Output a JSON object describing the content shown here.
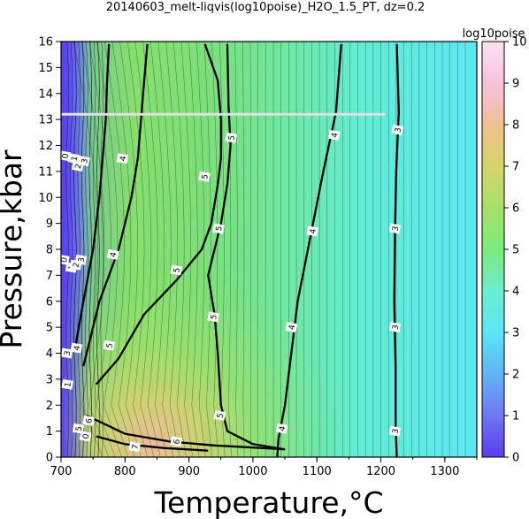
{
  "chart_data": {
    "type": "heatmap",
    "title": "20140603_melt-liqvis(log10poise)_H2O_1.5_PT, dz=0.2",
    "xlabel": "Temperature,°C",
    "ylabel": "Pressure,kbar",
    "xlim": [
      700,
      1350
    ],
    "ylim": [
      0,
      16
    ],
    "x_ticks": [
      "700",
      "800",
      "900",
      "1000",
      "1100",
      "1200",
      "1300"
    ],
    "y_ticks": [
      "0",
      "1",
      "2",
      "3",
      "4",
      "5",
      "6",
      "7",
      "8",
      "9",
      "10",
      "11",
      "12",
      "13",
      "14",
      "15",
      "16"
    ],
    "colorbar": {
      "label": "log10poise",
      "range": [
        0,
        10
      ],
      "ticks": [
        "0",
        "1",
        "2",
        "3",
        "4",
        "5",
        "6",
        "7",
        "8",
        "9",
        "10"
      ],
      "colors": [
        "#5a3cf0",
        "#6e78f2",
        "#5fb4f5",
        "#5ae6f5",
        "#6aeed0",
        "#7aea7a",
        "#a8e06a",
        "#d6d46a",
        "#f0c090",
        "#f7c0e0",
        "#fce2f2"
      ]
    },
    "major_contours": [
      {
        "level": 3,
        "points": [
          [
            1225,
            15.9
          ],
          [
            1228,
            13.3
          ],
          [
            1224,
            11.0
          ],
          [
            1222,
            8.5
          ],
          [
            1221,
            6.0
          ],
          [
            1223,
            3.5
          ],
          [
            1223,
            1.2
          ],
          [
            1225,
            0.0
          ]
        ]
      },
      {
        "level": 4,
        "points": [
          [
            1138,
            15.9
          ],
          [
            1130,
            13.3
          ],
          [
            1110,
            11.0
          ],
          [
            1090,
            8.5
          ],
          [
            1070,
            6.0
          ],
          [
            1060,
            4.0
          ],
          [
            1050,
            2.0
          ],
          [
            1040,
            0.7
          ],
          [
            1038,
            0.0
          ]
        ]
      },
      {
        "level": 5,
        "points": [
          [
            960,
            15.9
          ],
          [
            962,
            13.5
          ],
          [
            965,
            12.0
          ],
          [
            960,
            10.5
          ],
          [
            950,
            9.0
          ],
          [
            930,
            7.0
          ],
          [
            940,
            5.5
          ],
          [
            945,
            4.0
          ],
          [
            950,
            2.0
          ],
          [
            960,
            1.0
          ],
          [
            1000,
            0.5
          ],
          [
            1050,
            0.3
          ]
        ]
      },
      {
        "level": 5,
        "points": [
          [
            755,
            2.8
          ],
          [
            790,
            3.8
          ],
          [
            830,
            5.5
          ],
          [
            880,
            6.8
          ],
          [
            920,
            8.0
          ],
          [
            935,
            9.0
          ],
          [
            945,
            10.5
          ],
          [
            950,
            11.5
          ],
          [
            950,
            13.0
          ],
          [
            945,
            14.5
          ],
          [
            925,
            15.9
          ]
        ]
      },
      {
        "level": 4,
        "points": [
          [
            735,
            3.5
          ],
          [
            760,
            6.0
          ],
          [
            790,
            8.0
          ],
          [
            810,
            10.0
          ],
          [
            820,
            11.5
          ],
          [
            825,
            13.0
          ],
          [
            830,
            14.5
          ],
          [
            835,
            15.9
          ]
        ]
      },
      {
        "level": 3,
        "points": [
          [
            722,
            4.2
          ],
          [
            735,
            6.0
          ],
          [
            750,
            8.0
          ],
          [
            760,
            10.0
          ],
          [
            765,
            11.5
          ],
          [
            770,
            13.0
          ],
          [
            772,
            14.5
          ],
          [
            775,
            15.9
          ]
        ]
      },
      {
        "level": 6,
        "points": [
          [
            740,
            1.6
          ],
          [
            800,
            0.9
          ],
          [
            870,
            0.6
          ],
          [
            940,
            0.45
          ],
          [
            1050,
            0.3
          ]
        ]
      },
      {
        "level": 7,
        "points": [
          [
            755,
            0.8
          ],
          [
            800,
            0.5
          ],
          [
            860,
            0.35
          ],
          [
            930,
            0.25
          ]
        ]
      }
    ],
    "contour_labels": [
      {
        "text": "0",
        "x": 706,
        "y": 11.6
      },
      {
        "text": "1",
        "x": 720,
        "y": 11.5
      },
      {
        "text": "2",
        "x": 726,
        "y": 11.2
      },
      {
        "text": "3",
        "x": 736,
        "y": 11.4
      },
      {
        "text": "4",
        "x": 796,
        "y": 11.5
      },
      {
        "text": "5",
        "x": 966,
        "y": 12.3
      },
      {
        "text": "4",
        "x": 1127,
        "y": 12.4
      },
      {
        "text": "3",
        "x": 1226,
        "y": 12.6
      },
      {
        "text": "5",
        "x": 924,
        "y": 10.8
      },
      {
        "text": "5",
        "x": 946,
        "y": 8.8
      },
      {
        "text": "4",
        "x": 1093,
        "y": 8.7
      },
      {
        "text": "3",
        "x": 1222,
        "y": 8.8
      },
      {
        "text": "0",
        "x": 704,
        "y": 7.6
      },
      {
        "text": "1",
        "x": 716,
        "y": 7.3
      },
      {
        "text": "2",
        "x": 723,
        "y": 7.4
      },
      {
        "text": "3",
        "x": 731,
        "y": 7.6
      },
      {
        "text": "4",
        "x": 781,
        "y": 7.8
      },
      {
        "text": "5",
        "x": 880,
        "y": 7.2
      },
      {
        "text": "5",
        "x": 938,
        "y": 5.4
      },
      {
        "text": "4",
        "x": 1060,
        "y": 5.0
      },
      {
        "text": "3",
        "x": 1222,
        "y": 5.0
      },
      {
        "text": "5",
        "x": 775,
        "y": 4.3
      },
      {
        "text": "3",
        "x": 709,
        "y": 4.0
      },
      {
        "text": "4",
        "x": 724,
        "y": 4.2
      },
      {
        "text": "1",
        "x": 710,
        "y": 2.8
      },
      {
        "text": "5",
        "x": 948,
        "y": 1.6
      },
      {
        "text": "4",
        "x": 1045,
        "y": 1.1
      },
      {
        "text": "3",
        "x": 1222,
        "y": 1.0
      },
      {
        "text": "6",
        "x": 743,
        "y": 1.4
      },
      {
        "text": "5",
        "x": 727,
        "y": 1.1
      },
      {
        "text": "0",
        "x": 738,
        "y": 0.8
      },
      {
        "text": "6",
        "x": 880,
        "y": 0.6
      },
      {
        "text": "7",
        "x": 815,
        "y": 0.4
      }
    ],
    "reference_line": {
      "y": 13.2,
      "x_start": 700,
      "x_end": 1207,
      "color": "#e0e0e0"
    },
    "grid": false
  }
}
